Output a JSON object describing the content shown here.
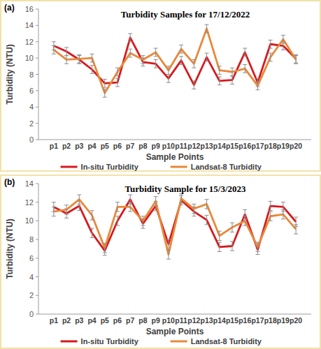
{
  "chart_data": [
    {
      "type": "line",
      "title": "Turbidity Samples for 17/12/2022",
      "annotations": [
        "(a)"
      ],
      "x_label": "Sample Points",
      "y_label": "Turbidity (NTU)",
      "categories": [
        "p1",
        "p2",
        "p3",
        "p4",
        "p5",
        "p6",
        "p7",
        "p8",
        "p9",
        "p10",
        "p11",
        "p12",
        "p13",
        "p14",
        "p15",
        "p16",
        "p17",
        "p18",
        "p19",
        "p20"
      ],
      "series": [
        {
          "name": "In-situ Turbidity",
          "color": "#d7191c",
          "values": [
            11.5,
            10.8,
            9.8,
            8.6,
            6.9,
            7.0,
            12.5,
            9.5,
            9.3,
            7.5,
            9.7,
            6.7,
            10.1,
            7.2,
            7.3,
            10.7,
            7.0,
            11.7,
            11.5,
            9.9
          ],
          "errors": [
            0.5,
            0.5,
            0.5,
            0.5,
            0.5,
            0.5,
            0.5,
            0.5,
            0.5,
            0.5,
            0.5,
            0.5,
            0.5,
            0.5,
            0.5,
            0.5,
            0.5,
            0.5,
            0.5,
            0.5
          ]
        },
        {
          "name": "Landsat-8 Turbidity",
          "color": "#e8883a",
          "values": [
            11.0,
            9.8,
            9.9,
            10.0,
            5.7,
            8.3,
            10.6,
            9.8,
            10.7,
            8.5,
            11.1,
            9.3,
            13.6,
            8.5,
            8.3,
            8.7,
            6.6,
            10.1,
            12.3,
            9.8
          ],
          "errors": [
            0.5,
            0.5,
            0.5,
            0.5,
            0.5,
            0.5,
            0.5,
            0.5,
            0.5,
            0.5,
            0.5,
            0.5,
            0.5,
            0.5,
            0.5,
            0.5,
            0.5,
            0.5,
            0.5,
            0.5
          ]
        }
      ],
      "ylim": [
        0,
        16
      ],
      "yticks": [
        0,
        2,
        4,
        6,
        8,
        10,
        12,
        14,
        16
      ],
      "grid": false,
      "legend": "bottom"
    },
    {
      "type": "line",
      "title": "Turbidity Sample for 15/3/2023",
      "annotations": [
        "(b)"
      ],
      "x_label": "Sample Points",
      "y_label": "Turbidity (NTU)",
      "categories": [
        "p1",
        "p2",
        "p3",
        "p4",
        "p5",
        "p6",
        "p7",
        "p8",
        "p9",
        "p10",
        "p11",
        "p12",
        "p13",
        "p14",
        "p15",
        "p16",
        "p17",
        "p18",
        "p19",
        "p20"
      ],
      "series": [
        {
          "name": "In-situ Turbidity",
          "color": "#d7191c",
          "values": [
            11.5,
            10.8,
            11.6,
            8.7,
            6.8,
            10.0,
            12.3,
            9.7,
            11.6,
            7.5,
            12.2,
            11.0,
            10.1,
            7.2,
            7.3,
            10.7,
            6.9,
            11.6,
            11.5,
            9.9
          ],
          "errors": [
            0.5,
            0.5,
            0.5,
            0.5,
            0.5,
            0.5,
            0.5,
            0.5,
            0.5,
            0.5,
            0.5,
            0.5,
            0.5,
            0.5,
            0.5,
            0.5,
            0.5,
            0.5,
            0.5,
            0.5
          ]
        },
        {
          "name": "Landsat-8 Turbidity",
          "color": "#e8883a",
          "values": [
            11.0,
            11.2,
            12.3,
            10.6,
            7.1,
            11.5,
            11.5,
            10.0,
            12.1,
            6.4,
            12.4,
            11.3,
            11.8,
            8.4,
            9.3,
            10.0,
            7.2,
            10.5,
            10.7,
            9.1
          ],
          "errors": [
            0.5,
            0.5,
            0.5,
            0.5,
            0.5,
            0.5,
            0.5,
            0.5,
            0.5,
            0.5,
            0.5,
            0.5,
            0.5,
            0.5,
            0.5,
            0.5,
            0.5,
            0.5,
            0.5,
            0.5
          ]
        }
      ],
      "ylim": [
        0,
        14
      ],
      "yticks": [
        0,
        2,
        4,
        6,
        8,
        10,
        12,
        14
      ],
      "grid": false,
      "legend": "bottom"
    }
  ]
}
